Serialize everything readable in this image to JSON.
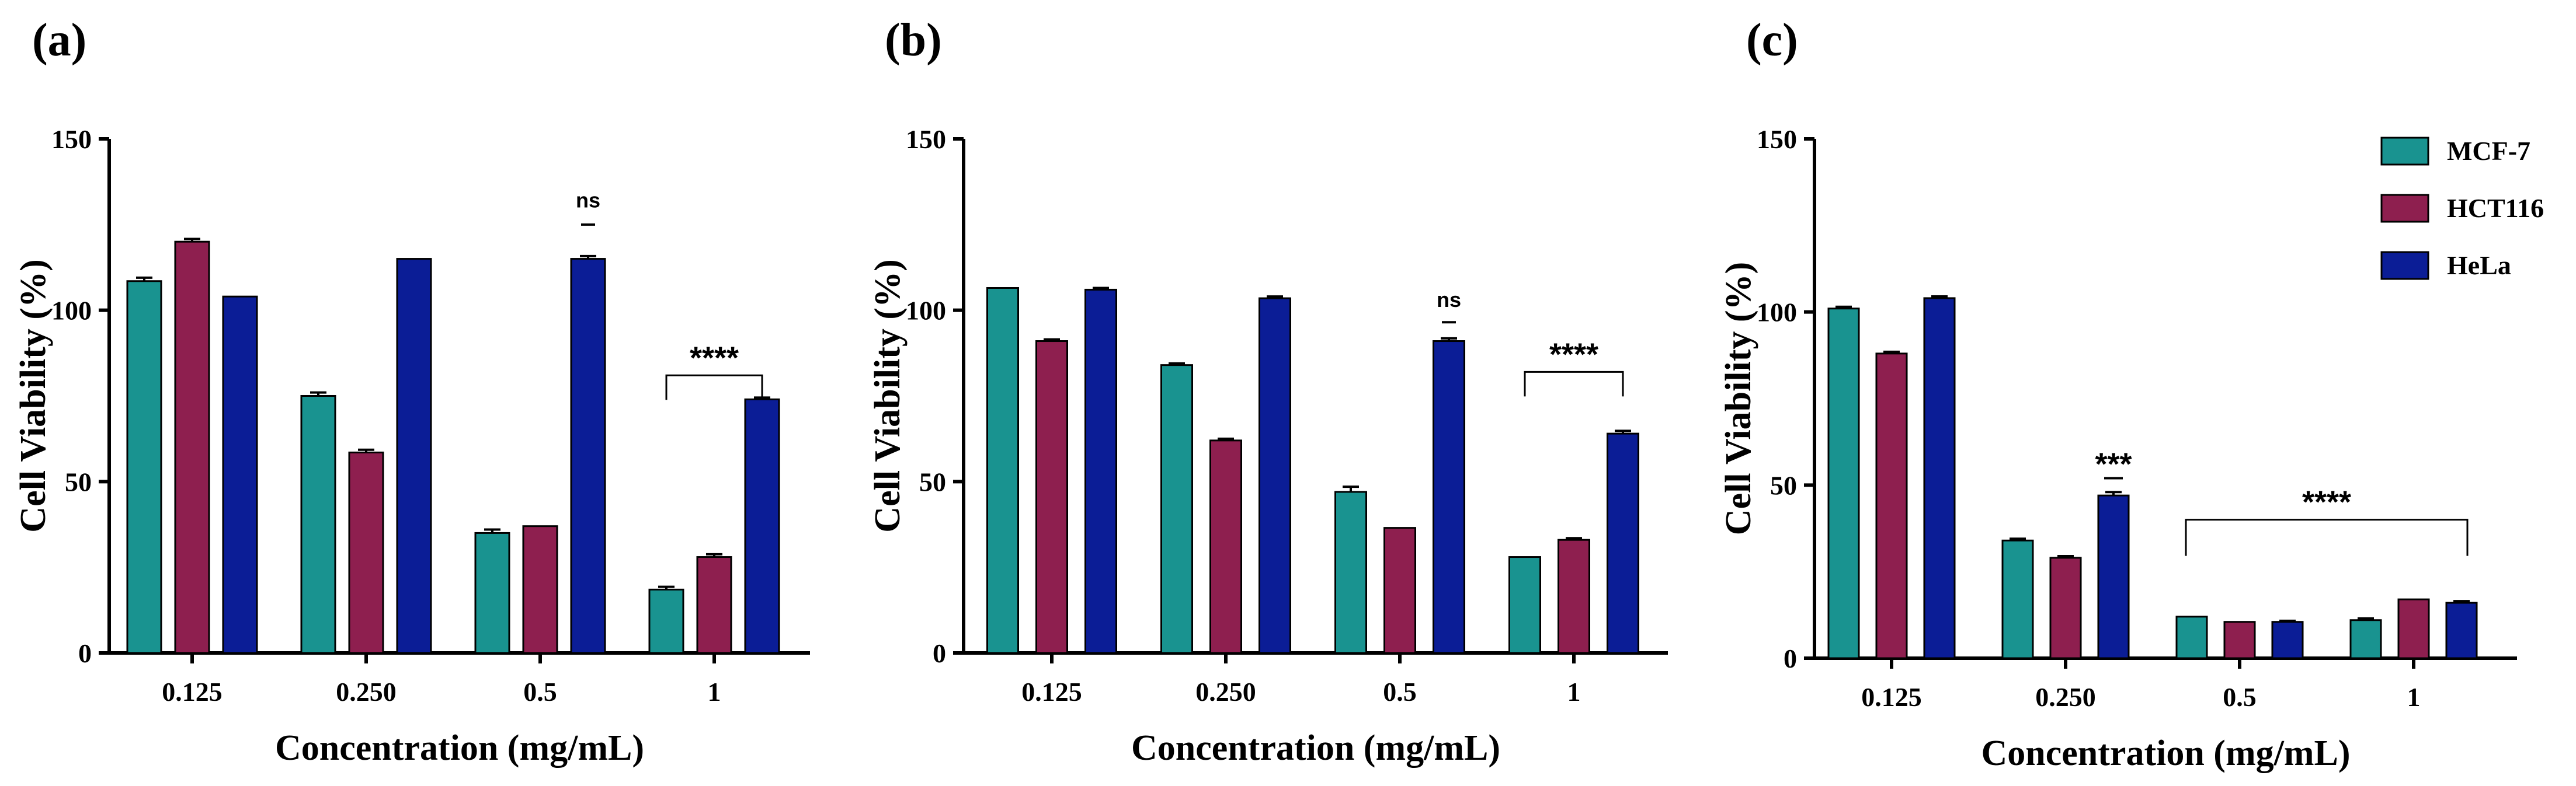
{
  "legend": [
    {
      "name": "MCF-7",
      "color": "#199390"
    },
    {
      "name": "HCT116",
      "color": "#8e1f4f"
    },
    {
      "name": "HeLa",
      "color": "#0b1d96"
    }
  ],
  "chart_data": [
    {
      "type": "bar",
      "panel_label": "(a)",
      "xlabel": "Concentration (mg/mL)",
      "ylabel": "Cell Viability (%)",
      "ylim": [
        0,
        150
      ],
      "yticks": [
        "0",
        "50",
        "100",
        "150"
      ],
      "categories": [
        "0.125",
        "0.250",
        "0.5",
        "1"
      ],
      "series": [
        {
          "name": "MCF-7",
          "values": [
            108.5,
            75,
            35,
            18.5
          ],
          "errors": [
            1,
            1,
            1,
            0.8
          ]
        },
        {
          "name": "HCT116",
          "values": [
            120,
            58.5,
            37,
            28
          ],
          "errors": [
            0.8,
            0.8,
            0,
            0.8
          ]
        },
        {
          "name": "HeLa",
          "values": [
            104,
            115,
            115,
            74
          ],
          "errors": [
            0,
            0,
            0.8,
            0.5
          ]
        }
      ],
      "annotations": [
        {
          "text": "ns",
          "category": 2,
          "series": 2,
          "type": "label",
          "at": 130,
          "mark": 125
        },
        {
          "text": "****",
          "category": 3,
          "type": "bracket",
          "from": 0,
          "to": 2,
          "at": 81
        }
      ]
    },
    {
      "type": "bar",
      "panel_label": "(b)",
      "xlabel": "Concentration (mg/mL)",
      "ylabel": "Cell Viability (%)",
      "ylim": [
        0,
        150
      ],
      "yticks": [
        "0",
        "50",
        "100",
        "150"
      ],
      "categories": [
        "0.125",
        "0.250",
        "0.5",
        "1"
      ],
      "series": [
        {
          "name": "MCF-7",
          "values": [
            106.5,
            84,
            47,
            28
          ],
          "errors": [
            0,
            0.5,
            1.5,
            0
          ]
        },
        {
          "name": "HCT116",
          "values": [
            91,
            62,
            36.5,
            33
          ],
          "errors": [
            0.5,
            0.5,
            0,
            0.5
          ]
        },
        {
          "name": "HeLa",
          "values": [
            106,
            103.5,
            91,
            64
          ],
          "errors": [
            0.5,
            0.5,
            0.8,
            0.8
          ]
        }
      ],
      "annotations": [
        {
          "text": "ns",
          "category": 2,
          "series": 2,
          "type": "label",
          "at": 101,
          "mark": 96.5
        },
        {
          "text": "****",
          "category": 3,
          "type": "bracket",
          "from": 0,
          "to": 2,
          "at": 82
        }
      ]
    },
    {
      "type": "bar",
      "panel_label": "(c)",
      "xlabel": "Concentration (mg/mL)",
      "ylabel": "Cell Viability (%)",
      "ylim": [
        0,
        150
      ],
      "yticks": [
        "0",
        "50",
        "100",
        "150"
      ],
      "categories": [
        "0.125",
        "0.250",
        "0.5",
        "1"
      ],
      "series": [
        {
          "name": "MCF-7",
          "values": [
            101,
            34,
            12,
            11
          ],
          "errors": [
            0.5,
            0.5,
            0,
            0.5
          ]
        },
        {
          "name": "HCT116",
          "values": [
            88,
            29,
            10.5,
            17
          ],
          "errors": [
            0.5,
            0.5,
            0,
            0
          ]
        },
        {
          "name": "HeLa",
          "values": [
            104,
            47,
            10.5,
            16
          ],
          "errors": [
            0.5,
            1,
            0.3,
            0.5
          ]
        }
      ],
      "annotations": [
        {
          "text": "***",
          "category": 1,
          "series": 2,
          "type": "label",
          "at": 53,
          "mark": 52
        },
        {
          "text": "****",
          "type": "span-bracket",
          "from_category": 2,
          "to_category": 3,
          "at": 40
        }
      ]
    }
  ]
}
